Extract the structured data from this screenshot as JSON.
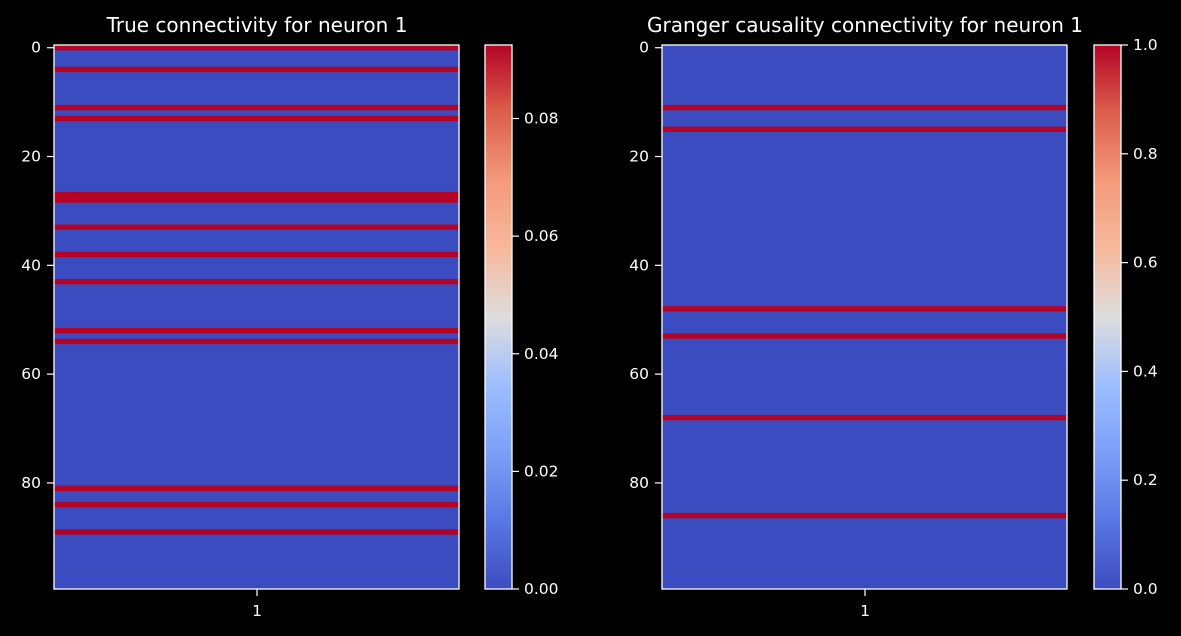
{
  "colors": {
    "background": "#000000",
    "foreground": "#ffffff",
    "cmap_low": "#3b4cc0",
    "cmap_high": "#b40426",
    "colormap": "coolwarm"
  },
  "chart_data": [
    {
      "type": "heatmap",
      "title": "True connectivity for neuron 1",
      "xlabel": "",
      "ylabel": "",
      "x_ticks": [
        "1"
      ],
      "y_ticks": [
        "0",
        "20",
        "40",
        "60",
        "80"
      ],
      "n_rows": 100,
      "ylim": [
        -0.5,
        99.5
      ],
      "value_max": 0.0925,
      "high_rows": [
        0,
        4,
        11,
        13,
        27,
        28,
        33,
        38,
        43,
        52,
        54,
        81,
        84,
        89
      ],
      "colorbar": {
        "vmin": 0,
        "vmax": 0.0925,
        "ticks": [
          "0.00",
          "0.02",
          "0.04",
          "0.06",
          "0.08"
        ],
        "tick_values": [
          0,
          0.02,
          0.04,
          0.06,
          0.08
        ]
      }
    },
    {
      "type": "heatmap",
      "title": "Granger causality connectivity for neuron 1",
      "xlabel": "",
      "ylabel": "",
      "x_ticks": [
        "1"
      ],
      "y_ticks": [
        "0",
        "20",
        "40",
        "60",
        "80"
      ],
      "n_rows": 100,
      "ylim": [
        -0.5,
        99.5
      ],
      "value_max": 1.0,
      "high_rows": [
        11,
        15,
        48,
        53,
        68,
        86
      ],
      "colorbar": {
        "vmin": 0,
        "vmax": 1.0,
        "ticks": [
          "0.0",
          "0.2",
          "0.4",
          "0.6",
          "0.8",
          "1.0"
        ],
        "tick_values": [
          0,
          0.2,
          0.4,
          0.6,
          0.8,
          1.0
        ]
      }
    }
  ]
}
